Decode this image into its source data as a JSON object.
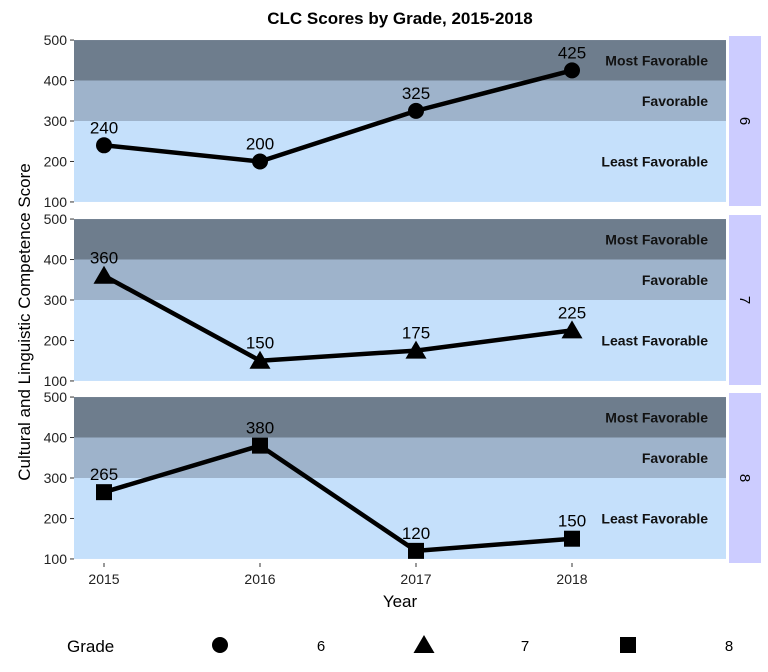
{
  "chart_data": {
    "type": "line",
    "title": "CLC Scores by Grade, 2015-2018",
    "xlabel": "Year",
    "ylabel": "Cultural and Linguistic Competence Score",
    "x": [
      "2015",
      "2016",
      "2017",
      "2018"
    ],
    "ylim": [
      90,
      510
    ],
    "yticks": [
      100,
      200,
      300,
      400,
      500
    ],
    "facet_by": "Grade",
    "bands": [
      {
        "label": "Least Favorable",
        "from": 100,
        "to": 300,
        "color": "#c5e0fb"
      },
      {
        "label": "Favorable",
        "from": 300,
        "to": 400,
        "color": "#9eb3cb"
      },
      {
        "label": "Most Favorable",
        "from": 400,
        "to": 500,
        "color": "#6e7d8d"
      }
    ],
    "panels": [
      {
        "grade": "6",
        "marker": "circle",
        "values": [
          240,
          200,
          325,
          425
        ]
      },
      {
        "grade": "7",
        "marker": "triangle",
        "values": [
          360,
          150,
          175,
          225
        ]
      },
      {
        "grade": "8",
        "marker": "square",
        "values": [
          265,
          380,
          120,
          150
        ]
      }
    ],
    "strip_color": "#ccccff",
    "legend": {
      "title": "Grade",
      "position": "bottom",
      "entries": [
        {
          "label": "6",
          "marker": "circle"
        },
        {
          "label": "7",
          "marker": "triangle"
        },
        {
          "label": "8",
          "marker": "square"
        }
      ]
    }
  }
}
